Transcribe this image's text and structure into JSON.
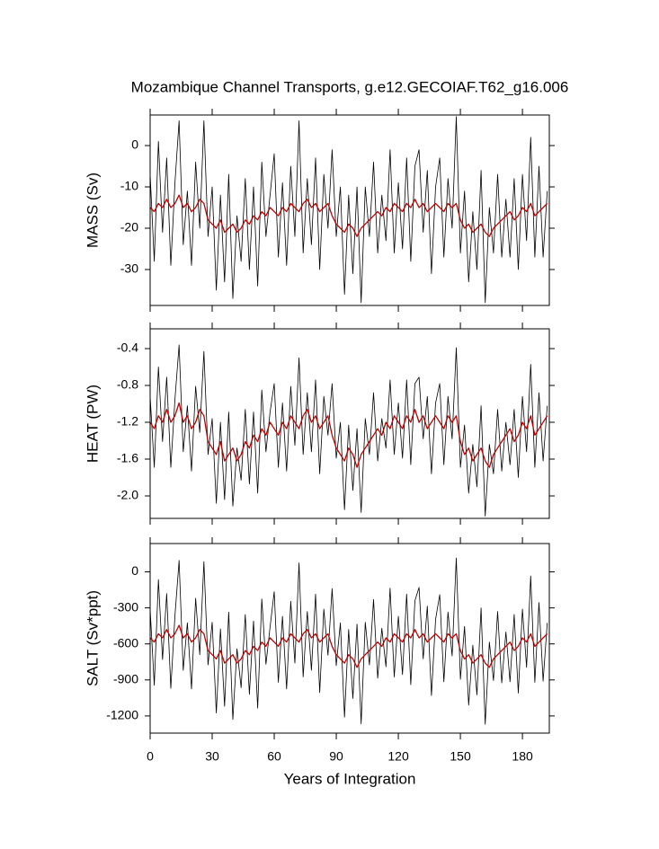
{
  "chart_data": [
    {
      "type": "line",
      "title": "Mozambique Channel Transports, g.e12.GECOIAF.T62_g16.006",
      "ylabel": "MASS (Sv)",
      "x": [
        0,
        2,
        4,
        6,
        8,
        10,
        12,
        14,
        16,
        18,
        20,
        22,
        24,
        26,
        28,
        30,
        32,
        34,
        36,
        38,
        40,
        42,
        44,
        46,
        48,
        50,
        52,
        54,
        56,
        58,
        60,
        62,
        64,
        66,
        68,
        70,
        72,
        74,
        76,
        78,
        80,
        82,
        84,
        86,
        88,
        90,
        92,
        94,
        96,
        98,
        100,
        102,
        104,
        106,
        108,
        110,
        112,
        114,
        116,
        118,
        120,
        122,
        124,
        126,
        128,
        130,
        132,
        134,
        136,
        138,
        140,
        142,
        144,
        146,
        148,
        150,
        152,
        154,
        156,
        158,
        160,
        162,
        164,
        166,
        168,
        170,
        172,
        174,
        176,
        178,
        180,
        182,
        184,
        186,
        188,
        190,
        192
      ],
      "xlim": [
        0,
        193
      ],
      "xticks": [
        0,
        30,
        60,
        90,
        120,
        150,
        180
      ],
      "ylim": [
        -38.7,
        7.4
      ],
      "yticks": [
        -30,
        -20,
        -10,
        0
      ],
      "series": [
        {
          "color": "#000000",
          "values": [
            -7,
            -28,
            1,
            -21,
            -3,
            -29,
            -9,
            6,
            -24,
            -11,
            -29,
            -4,
            -20,
            6,
            -22,
            -10,
            -35,
            -12,
            -33,
            -7,
            -37,
            -17,
            -28,
            -8,
            -30,
            -10,
            -34,
            -4,
            -22,
            -12,
            -2,
            -27,
            -9,
            -29,
            -5,
            -22,
            6,
            -26,
            -8,
            -24,
            -3,
            -30,
            -7,
            -20,
            -1,
            -22,
            -10,
            -36,
            -12,
            -31,
            -10,
            -38,
            -10,
            -22,
            -4,
            -26,
            -12,
            -23,
            -1,
            -26,
            -9,
            -25,
            -3,
            -28,
            -5,
            -1,
            -21,
            -6,
            -31,
            -10,
            -3,
            -27,
            -8,
            -20,
            7,
            -26,
            -11,
            -33,
            -16,
            -30,
            -6,
            -38,
            -15,
            -26,
            -7,
            -27,
            -13,
            -27,
            -8,
            -30,
            -7,
            -23,
            2,
            -27,
            -5,
            -27,
            -11
          ]
        },
        {
          "color": "#c00000",
          "values": [
            -15,
            -16,
            -14,
            -15,
            -13,
            -15,
            -14,
            -12,
            -15,
            -14,
            -16,
            -15,
            -13,
            -14,
            -18,
            -19,
            -20,
            -18,
            -21,
            -20,
            -19,
            -21,
            -20,
            -18,
            -19,
            -17,
            -18,
            -16,
            -17,
            -15,
            -16,
            -17,
            -15,
            -16,
            -14,
            -15,
            -16,
            -14,
            -13,
            -15,
            -14,
            -16,
            -15,
            -14,
            -17,
            -19,
            -20,
            -21,
            -19,
            -20,
            -22,
            -20,
            -19,
            -18,
            -17,
            -16,
            -17,
            -15,
            -16,
            -14,
            -15,
            -16,
            -14,
            -15,
            -13,
            -15,
            -14,
            -16,
            -15,
            -14,
            -15,
            -16,
            -14,
            -15,
            -14,
            -18,
            -20,
            -19,
            -21,
            -20,
            -19,
            -21,
            -22,
            -20,
            -19,
            -18,
            -17,
            -16,
            -18,
            -17,
            -15,
            -16,
            -14,
            -17,
            -16,
            -15,
            -14
          ]
        }
      ]
    },
    {
      "type": "line",
      "ylabel": "HEAT (PW)",
      "x": [
        0,
        2,
        4,
        6,
        8,
        10,
        12,
        14,
        16,
        18,
        20,
        22,
        24,
        26,
        28,
        30,
        32,
        34,
        36,
        38,
        40,
        42,
        44,
        46,
        48,
        50,
        52,
        54,
        56,
        58,
        60,
        62,
        64,
        66,
        68,
        70,
        72,
        74,
        76,
        78,
        80,
        82,
        84,
        86,
        88,
        90,
        92,
        94,
        96,
        98,
        100,
        102,
        104,
        106,
        108,
        110,
        112,
        114,
        116,
        118,
        120,
        122,
        124,
        126,
        128,
        130,
        132,
        134,
        136,
        138,
        140,
        142,
        144,
        146,
        148,
        150,
        152,
        154,
        156,
        158,
        160,
        162,
        164,
        166,
        168,
        170,
        172,
        174,
        176,
        178,
        180,
        182,
        184,
        186,
        188,
        190,
        192
      ],
      "xlim": [
        0,
        193
      ],
      "xticks": [
        0,
        30,
        60,
        90,
        120,
        150,
        180
      ],
      "ylim": [
        -2.244,
        -0.185
      ],
      "yticks": [
        {
          "value": -2,
          "label": "-2.0"
        },
        -1.6,
        -1.2,
        -0.8,
        -0.4
      ],
      "series": [
        {
          "color": "#000000",
          "values": [
            -0.92,
            -1.69,
            -0.6,
            -1.41,
            -0.71,
            -1.69,
            -0.95,
            -0.36,
            -1.52,
            -1.02,
            -1.73,
            -0.81,
            -1.31,
            -0.43,
            -1.55,
            -1.16,
            -2.08,
            -1.2,
            -2.04,
            -1.09,
            -2.11,
            -1.48,
            -1.83,
            -1.06,
            -1.87,
            -1.09,
            -1.97,
            -0.85,
            -1.52,
            -1.09,
            -0.78,
            -1.69,
            -0.99,
            -1.73,
            -0.81,
            -1.45,
            -0.5,
            -1.55,
            -0.88,
            -1.52,
            -0.74,
            -1.76,
            -0.92,
            -1.34,
            -0.78,
            -1.59,
            -1.2,
            -2.15,
            -1.23,
            -1.94,
            -1.27,
            -2.18,
            -1.16,
            -1.55,
            -0.88,
            -1.62,
            -1.16,
            -1.48,
            -0.74,
            -1.55,
            -0.99,
            -1.59,
            -0.74,
            -1.66,
            -0.78,
            -0.71,
            -1.38,
            -0.92,
            -1.76,
            -0.99,
            -0.78,
            -1.66,
            -0.92,
            -1.38,
            -0.39,
            -1.69,
            -1.23,
            -1.97,
            -1.44,
            -1.9,
            -1.02,
            -2.22,
            -1.44,
            -1.76,
            -1.06,
            -1.73,
            -1.2,
            -1.66,
            -1.06,
            -1.8,
            -0.92,
            -1.52,
            -0.57,
            -1.69,
            -0.88,
            -1.62,
            -1.02
          ]
        },
        {
          "color": "#c00000",
          "values": [
            -1.2,
            -1.27,
            -1.13,
            -1.2,
            -1.06,
            -1.2,
            -1.13,
            -0.99,
            -1.2,
            -1.13,
            -1.27,
            -1.2,
            -1.06,
            -1.13,
            -1.41,
            -1.48,
            -1.55,
            -1.41,
            -1.62,
            -1.55,
            -1.48,
            -1.62,
            -1.55,
            -1.41,
            -1.48,
            -1.34,
            -1.41,
            -1.27,
            -1.34,
            -1.2,
            -1.27,
            -1.34,
            -1.2,
            -1.27,
            -1.13,
            -1.2,
            -1.27,
            -1.13,
            -1.06,
            -1.2,
            -1.13,
            -1.27,
            -1.2,
            -1.13,
            -1.34,
            -1.48,
            -1.55,
            -1.62,
            -1.48,
            -1.55,
            -1.69,
            -1.55,
            -1.48,
            -1.41,
            -1.34,
            -1.27,
            -1.34,
            -1.2,
            -1.27,
            -1.13,
            -1.2,
            -1.27,
            -1.13,
            -1.2,
            -1.06,
            -1.2,
            -1.13,
            -1.27,
            -1.2,
            -1.13,
            -1.2,
            -1.27,
            -1.13,
            -1.2,
            -1.13,
            -1.41,
            -1.55,
            -1.48,
            -1.62,
            -1.55,
            -1.48,
            -1.62,
            -1.69,
            -1.55,
            -1.48,
            -1.41,
            -1.34,
            -1.27,
            -1.41,
            -1.34,
            -1.2,
            -1.27,
            -1.13,
            -1.34,
            -1.27,
            -1.2,
            -1.13
          ]
        }
      ]
    },
    {
      "type": "line",
      "ylabel": "SALT (Sv*ppt)",
      "xlabel": "Years of Integration",
      "x": [
        0,
        2,
        4,
        6,
        8,
        10,
        12,
        14,
        16,
        18,
        20,
        22,
        24,
        26,
        28,
        30,
        32,
        34,
        36,
        38,
        40,
        42,
        44,
        46,
        48,
        50,
        52,
        54,
        56,
        58,
        60,
        62,
        64,
        66,
        68,
        70,
        72,
        74,
        76,
        78,
        80,
        82,
        84,
        86,
        88,
        90,
        92,
        94,
        96,
        98,
        100,
        102,
        104,
        106,
        108,
        110,
        112,
        114,
        116,
        118,
        120,
        122,
        124,
        126,
        128,
        130,
        132,
        134,
        136,
        138,
        140,
        142,
        144,
        146,
        148,
        150,
        152,
        154,
        156,
        158,
        160,
        162,
        164,
        166,
        168,
        170,
        172,
        174,
        176,
        178,
        180,
        182,
        184,
        186,
        188,
        190,
        192
      ],
      "xlim": [
        0,
        193
      ],
      "xticks": [
        0,
        30,
        60,
        90,
        120,
        150,
        180
      ],
      "ylim": [
        -1343,
        236
      ],
      "yticks": [
        -1200,
        -900,
        -600,
        -300,
        0
      ],
      "series": [
        {
          "color": "#000000",
          "values": [
            -310,
            -945,
            -65,
            -730,
            -180,
            -970,
            -365,
            95,
            -820,
            -425,
            -975,
            -220,
            -690,
            85,
            -775,
            -420,
            -1175,
            -475,
            -1120,
            -335,
            -1230,
            -640,
            -965,
            -355,
            -1020,
            -410,
            -1135,
            -225,
            -770,
            -460,
            -165,
            -920,
            -370,
            -975,
            -245,
            -760,
            75,
            -875,
            -330,
            -820,
            -185,
            -1005,
            -310,
            -695,
            -140,
            -780,
            -425,
            -1210,
            -480,
            -1055,
            -435,
            -1265,
            -420,
            -775,
            -230,
            -885,
            -470,
            -790,
            -135,
            -875,
            -370,
            -855,
            -185,
            -940,
            -240,
            -130,
            -725,
            -285,
            -1030,
            -395,
            -190,
            -915,
            -335,
            -700,
            115,
            -895,
            -455,
            -1110,
            -610,
            -1025,
            -300,
            -1270,
            -585,
            -905,
            -330,
            -925,
            -500,
            -915,
            -355,
            -1010,
            -310,
            -795,
            -35,
            -920,
            -255,
            -910,
            -425
          ]
        },
        {
          "color": "#c00000",
          "values": [
            -550,
            -585,
            -515,
            -550,
            -480,
            -550,
            -515,
            -445,
            -550,
            -515,
            -585,
            -550,
            -480,
            -515,
            -655,
            -690,
            -725,
            -655,
            -760,
            -725,
            -690,
            -760,
            -725,
            -655,
            -690,
            -620,
            -655,
            -585,
            -620,
            -550,
            -585,
            -620,
            -550,
            -585,
            -515,
            -550,
            -585,
            -515,
            -480,
            -550,
            -515,
            -585,
            -550,
            -515,
            -620,
            -690,
            -725,
            -760,
            -690,
            -725,
            -795,
            -725,
            -690,
            -655,
            -620,
            -585,
            -620,
            -550,
            -585,
            -515,
            -550,
            -585,
            -515,
            -550,
            -480,
            -550,
            -515,
            -585,
            -550,
            -515,
            -550,
            -585,
            -515,
            -550,
            -515,
            -655,
            -725,
            -690,
            -760,
            -725,
            -690,
            -760,
            -795,
            -725,
            -690,
            -655,
            -620,
            -585,
            -655,
            -620,
            -550,
            -585,
            -515,
            -620,
            -585,
            -550,
            -515
          ]
        }
      ]
    }
  ]
}
